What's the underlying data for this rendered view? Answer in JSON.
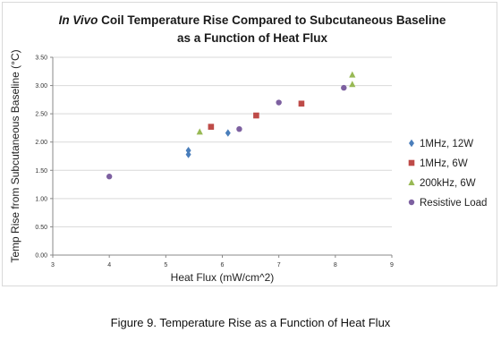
{
  "chart_data": {
    "type": "scatter",
    "title_italic": "In Vivo",
    "title_rest": " Coil Temperature Rise Compared to Subcutaneous Baseline",
    "title_line2": "as a Function of Heat Flux",
    "xlabel": "Heat Flux (mW/cm^2)",
    "ylabel": "Temp Rise from Subcutaneous Baseline (°C)",
    "xlim": [
      3,
      9
    ],
    "ylim": [
      0,
      3.5
    ],
    "x_ticks": [
      "3",
      "4",
      "5",
      "6",
      "7",
      "8",
      "9"
    ],
    "y_ticks": [
      "0.00",
      "0.50",
      "1.00",
      "1.50",
      "2.00",
      "2.50",
      "3.00",
      "3.50"
    ],
    "grid": "horizontal",
    "legend_position": "right",
    "series": [
      {
        "name": "1MHz, 12W",
        "marker": "diamond",
        "color": "#4a7ebb",
        "points": [
          [
            5.4,
            1.85
          ],
          [
            5.4,
            1.78
          ],
          [
            6.1,
            2.16
          ]
        ]
      },
      {
        "name": "1MHz, 6W",
        "marker": "square",
        "color": "#be4b48",
        "points": [
          [
            5.8,
            2.27
          ],
          [
            6.6,
            2.47
          ],
          [
            7.4,
            2.68
          ]
        ]
      },
      {
        "name": "200kHz, 6W",
        "marker": "triangle",
        "color": "#98b954",
        "points": [
          [
            5.6,
            2.18
          ],
          [
            8.3,
            3.19
          ],
          [
            8.3,
            3.02
          ]
        ]
      },
      {
        "name": "Resistive Load",
        "marker": "circle",
        "color": "#7d60a0",
        "points": [
          [
            4.0,
            1.39
          ],
          [
            6.3,
            2.23
          ],
          [
            7.0,
            2.7
          ],
          [
            8.15,
            2.96
          ]
        ]
      }
    ]
  },
  "caption": "Figure 9. Temperature Rise as a Function of Heat Flux"
}
